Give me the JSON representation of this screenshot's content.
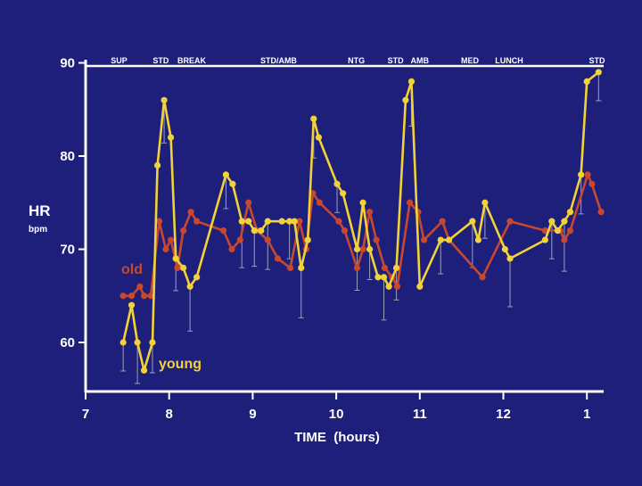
{
  "chart_data": {
    "type": "line",
    "title": "",
    "xlabel": "TIME  (hours)",
    "ylabel": "HR",
    "ylabel_unit": "bpm",
    "xlim": [
      7,
      1
    ],
    "ylim": [
      55,
      90
    ],
    "x_ticks": [
      "7",
      "8",
      "9",
      "10",
      "11",
      "12",
      "1"
    ],
    "y_ticks": [
      60,
      70,
      80,
      90
    ],
    "grid": false,
    "events": [
      {
        "label": "SUP",
        "x": 7.4
      },
      {
        "label": "STD",
        "x": 7.9
      },
      {
        "label": "BREAK",
        "x": 8.27
      },
      {
        "label": "STD/AMB",
        "x": 9.31
      },
      {
        "label": "NTG",
        "x": 10.24
      },
      {
        "label": "STD",
        "x": 10.71
      },
      {
        "label": "AMB",
        "x": 11.0
      },
      {
        "label": "MED",
        "x": 11.6
      },
      {
        "label": "LUNCH",
        "x": 12.07
      },
      {
        "label": "STD",
        "x": 13.12
      }
    ],
    "series": [
      {
        "name": "old",
        "color": "#c8482e",
        "points": [
          [
            7.45,
            65
          ],
          [
            7.55,
            65
          ],
          [
            7.65,
            66
          ],
          [
            7.7,
            65
          ],
          [
            7.78,
            65
          ],
          [
            7.88,
            73
          ],
          [
            7.96,
            70
          ],
          [
            8.02,
            71
          ],
          [
            8.1,
            68
          ],
          [
            8.17,
            72
          ],
          [
            8.26,
            74
          ],
          [
            8.33,
            73
          ],
          [
            8.65,
            72
          ],
          [
            8.75,
            70
          ],
          [
            8.85,
            71
          ],
          [
            8.95,
            75
          ],
          [
            9.05,
            72
          ],
          [
            9.18,
            71
          ],
          [
            9.3,
            69
          ],
          [
            9.45,
            68
          ],
          [
            9.56,
            73
          ],
          [
            9.64,
            70
          ],
          [
            9.72,
            76
          ],
          [
            9.8,
            75
          ],
          [
            10.03,
            73
          ],
          [
            10.1,
            72
          ],
          [
            10.25,
            68
          ],
          [
            10.32,
            70
          ],
          [
            10.4,
            74
          ],
          [
            10.48,
            71
          ],
          [
            10.58,
            68
          ],
          [
            10.67,
            67
          ],
          [
            10.73,
            66
          ],
          [
            10.88,
            75
          ],
          [
            10.98,
            74
          ],
          [
            11.05,
            71
          ],
          [
            11.27,
            73
          ],
          [
            11.35,
            71
          ],
          [
            11.75,
            67
          ],
          [
            12.08,
            73
          ],
          [
            12.5,
            72
          ],
          [
            12.68,
            72
          ],
          [
            12.73,
            71
          ],
          [
            12.8,
            72
          ],
          [
            13.01,
            78
          ],
          [
            13.06,
            77
          ],
          [
            13.17,
            74
          ]
        ]
      },
      {
        "name": "young",
        "color": "#f2d237",
        "points": [
          [
            7.45,
            60
          ],
          [
            7.55,
            64
          ],
          [
            7.62,
            60
          ],
          [
            7.7,
            57
          ],
          [
            7.8,
            60
          ],
          [
            7.86,
            79
          ],
          [
            7.94,
            86
          ],
          [
            8.02,
            82
          ],
          [
            8.08,
            69
          ],
          [
            8.17,
            68
          ],
          [
            8.25,
            66
          ],
          [
            8.33,
            67
          ],
          [
            8.68,
            78
          ],
          [
            8.76,
            77
          ],
          [
            8.87,
            73
          ],
          [
            8.95,
            73
          ],
          [
            9.02,
            72
          ],
          [
            9.1,
            72
          ],
          [
            9.18,
            73
          ],
          [
            9.35,
            73
          ],
          [
            9.44,
            73
          ],
          [
            9.5,
            73
          ],
          [
            9.58,
            68
          ],
          [
            9.66,
            71
          ],
          [
            9.73,
            84
          ],
          [
            9.79,
            82
          ],
          [
            10.01,
            77
          ],
          [
            10.08,
            76
          ],
          [
            10.25,
            70
          ],
          [
            10.32,
            75
          ],
          [
            10.4,
            70
          ],
          [
            10.5,
            67
          ],
          [
            10.57,
            67
          ],
          [
            10.63,
            66
          ],
          [
            10.72,
            68
          ],
          [
            10.83,
            86
          ],
          [
            10.9,
            88
          ],
          [
            11.0,
            66
          ],
          [
            11.25,
            71
          ],
          [
            11.35,
            71
          ],
          [
            11.63,
            73
          ],
          [
            11.7,
            71
          ],
          [
            11.78,
            75
          ],
          [
            12.02,
            70
          ],
          [
            12.08,
            69
          ],
          [
            12.5,
            71
          ],
          [
            12.58,
            73
          ],
          [
            12.65,
            72
          ],
          [
            12.73,
            73
          ],
          [
            12.8,
            74
          ],
          [
            12.93,
            78
          ],
          [
            13.0,
            88
          ],
          [
            13.14,
            89
          ]
        ]
      }
    ]
  }
}
